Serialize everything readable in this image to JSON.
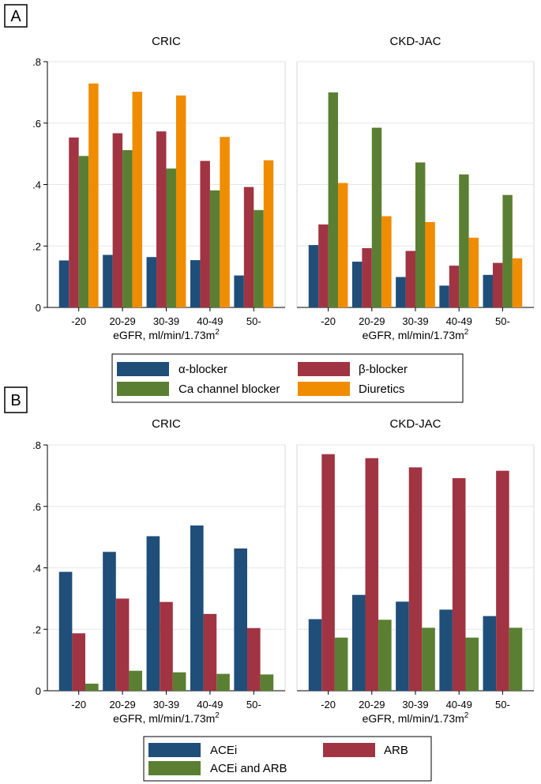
{
  "chart_data": [
    {
      "type": "bar",
      "panel_label": "A",
      "ylim": [
        0,
        0.8
      ],
      "yticks": [
        0,
        0.2,
        0.4,
        0.6,
        0.8
      ],
      "ytick_labels": [
        "0",
        ".2",
        ".4",
        ".6",
        ".8"
      ],
      "xlabel": "eGFR, ml/min/1.73m",
      "xlabel_superscript": "2",
      "legend": [
        "α-blocker",
        "β-blocker",
        "Ca channel blocker",
        "Diuretics"
      ],
      "colors": [
        "#1f4e79",
        "#a13442",
        "#5a7f32",
        "#f08c00"
      ],
      "facets": [
        {
          "title": "CRIC",
          "categories": [
            "-20",
            "20-29",
            "30-39",
            "40-49",
            "50-"
          ],
          "series": [
            {
              "name": "α-blocker",
              "values": [
                0.153,
                0.171,
                0.164,
                0.154,
                0.104
              ]
            },
            {
              "name": "β-blocker",
              "values": [
                0.553,
                0.567,
                0.573,
                0.477,
                0.392
              ]
            },
            {
              "name": "Ca channel blocker",
              "values": [
                0.493,
                0.512,
                0.452,
                0.381,
                0.317
              ]
            },
            {
              "name": "Diuretics",
              "values": [
                0.729,
                0.702,
                0.69,
                0.555,
                0.479
              ]
            }
          ]
        },
        {
          "title": "CKD-JAC",
          "categories": [
            "-20",
            "20-29",
            "30-39",
            "40-49",
            "50-"
          ],
          "series": [
            {
              "name": "α-blocker",
              "values": [
                0.203,
                0.149,
                0.099,
                0.071,
                0.106
              ]
            },
            {
              "name": "β-blocker",
              "values": [
                0.27,
                0.193,
                0.184,
                0.136,
                0.145
              ]
            },
            {
              "name": "Ca channel blocker",
              "values": [
                0.7,
                0.585,
                0.472,
                0.433,
                0.366
              ]
            },
            {
              "name": "Diuretics",
              "values": [
                0.405,
                0.297,
                0.278,
                0.227,
                0.16
              ]
            }
          ]
        }
      ]
    },
    {
      "type": "bar",
      "panel_label": "B",
      "ylim": [
        0,
        0.8
      ],
      "yticks": [
        0,
        0.2,
        0.4,
        0.6,
        0.8
      ],
      "ytick_labels": [
        "0",
        ".2",
        ".4",
        ".6",
        ".8"
      ],
      "xlabel": "eGFR, ml/min/1.73m",
      "xlabel_superscript": "2",
      "legend": [
        "ACEi",
        "ARB",
        "ACEi and ARB"
      ],
      "colors": [
        "#1f4e79",
        "#a13442",
        "#5a7f32"
      ],
      "facets": [
        {
          "title": "CRIC",
          "categories": [
            "-20",
            "20-29",
            "30-39",
            "40-49",
            "50-"
          ],
          "series": [
            {
              "name": "ACEi",
              "values": [
                0.387,
                0.452,
                0.503,
                0.538,
                0.463
              ]
            },
            {
              "name": "ARB",
              "values": [
                0.187,
                0.3,
                0.289,
                0.25,
                0.204
              ]
            },
            {
              "name": "ACEi and ARB",
              "values": [
                0.023,
                0.065,
                0.06,
                0.055,
                0.053
              ]
            }
          ]
        },
        {
          "title": "CKD-JAC",
          "categories": [
            "-20",
            "20-29",
            "30-39",
            "40-49",
            "50-"
          ],
          "series": [
            {
              "name": "ACEi",
              "values": [
                0.233,
                0.312,
                0.29,
                0.264,
                0.243
              ]
            },
            {
              "name": "ARB",
              "values": [
                0.77,
                0.757,
                0.727,
                0.692,
                0.716
              ]
            },
            {
              "name": "ACEi and ARB",
              "values": [
                0.173,
                0.231,
                0.205,
                0.173,
                0.205
              ]
            }
          ]
        }
      ]
    }
  ]
}
